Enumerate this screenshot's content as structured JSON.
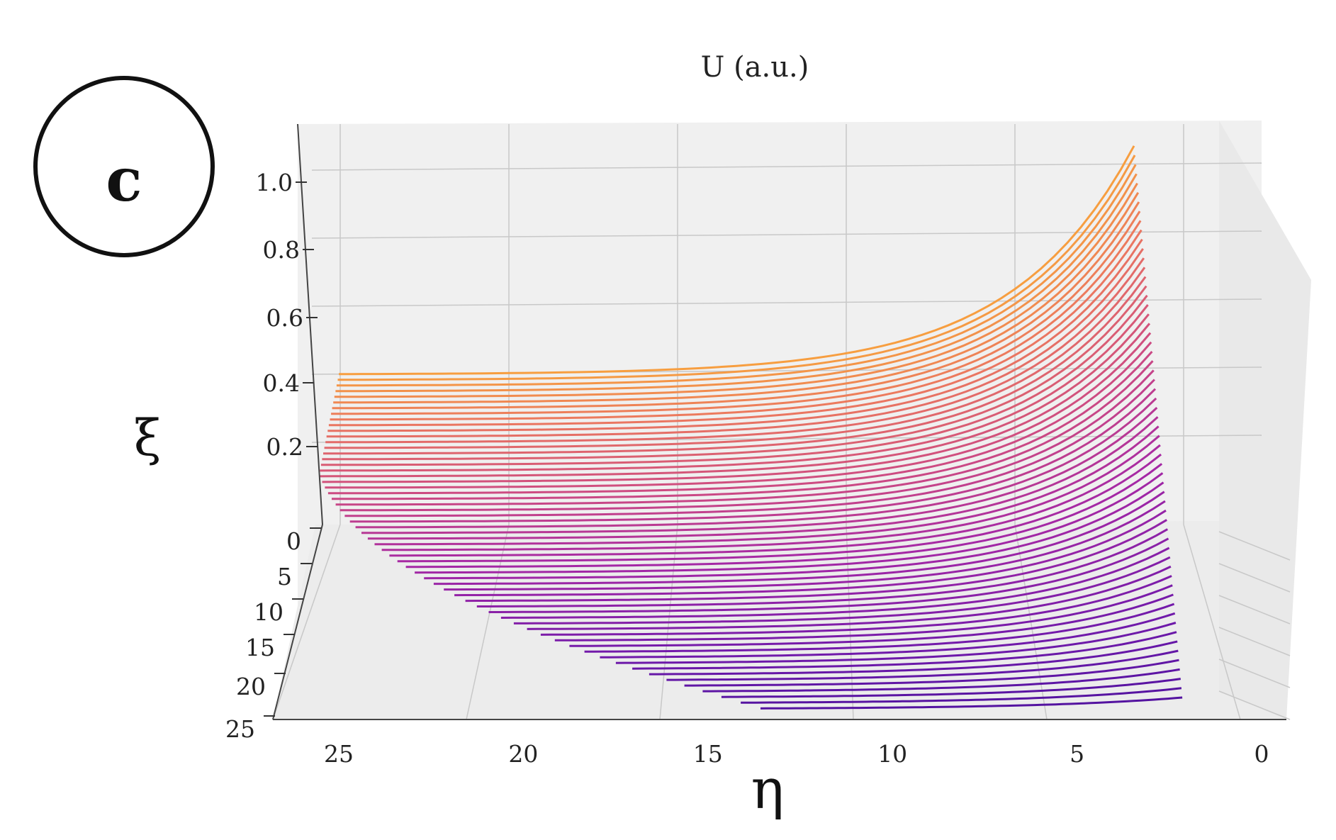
{
  "panel_label": "c",
  "chart_data": {
    "type": "surface-3d",
    "title": "U (a.u.)",
    "xlabel": "η",
    "ylabel": "ξ",
    "x_ticks": [
      "25",
      "20",
      "15",
      "10",
      "5",
      "0"
    ],
    "y_ticks": [
      "0",
      "5",
      "10",
      "15",
      "20",
      "25"
    ],
    "z_ticks": [
      "0.2",
      "0.4",
      "0.6",
      "0.8",
      "1.0"
    ],
    "xlim": [
      25,
      0
    ],
    "ylim": [
      0,
      25
    ],
    "zlim": [
      0,
      1.1
    ],
    "colormap": "plasma",
    "grid": true,
    "curves": {
      "count": 60,
      "xi_start": 0.5,
      "xi_end": 25,
      "eta_start": 1.5,
      "eta_end": 25,
      "U_max": 1.0,
      "U_at_eta_25": 0.38,
      "U_min_near_eta_end": 0.05
    },
    "colors": {
      "low": "#2c0a91",
      "mid": "#b030a6",
      "high": "#fde725"
    }
  }
}
